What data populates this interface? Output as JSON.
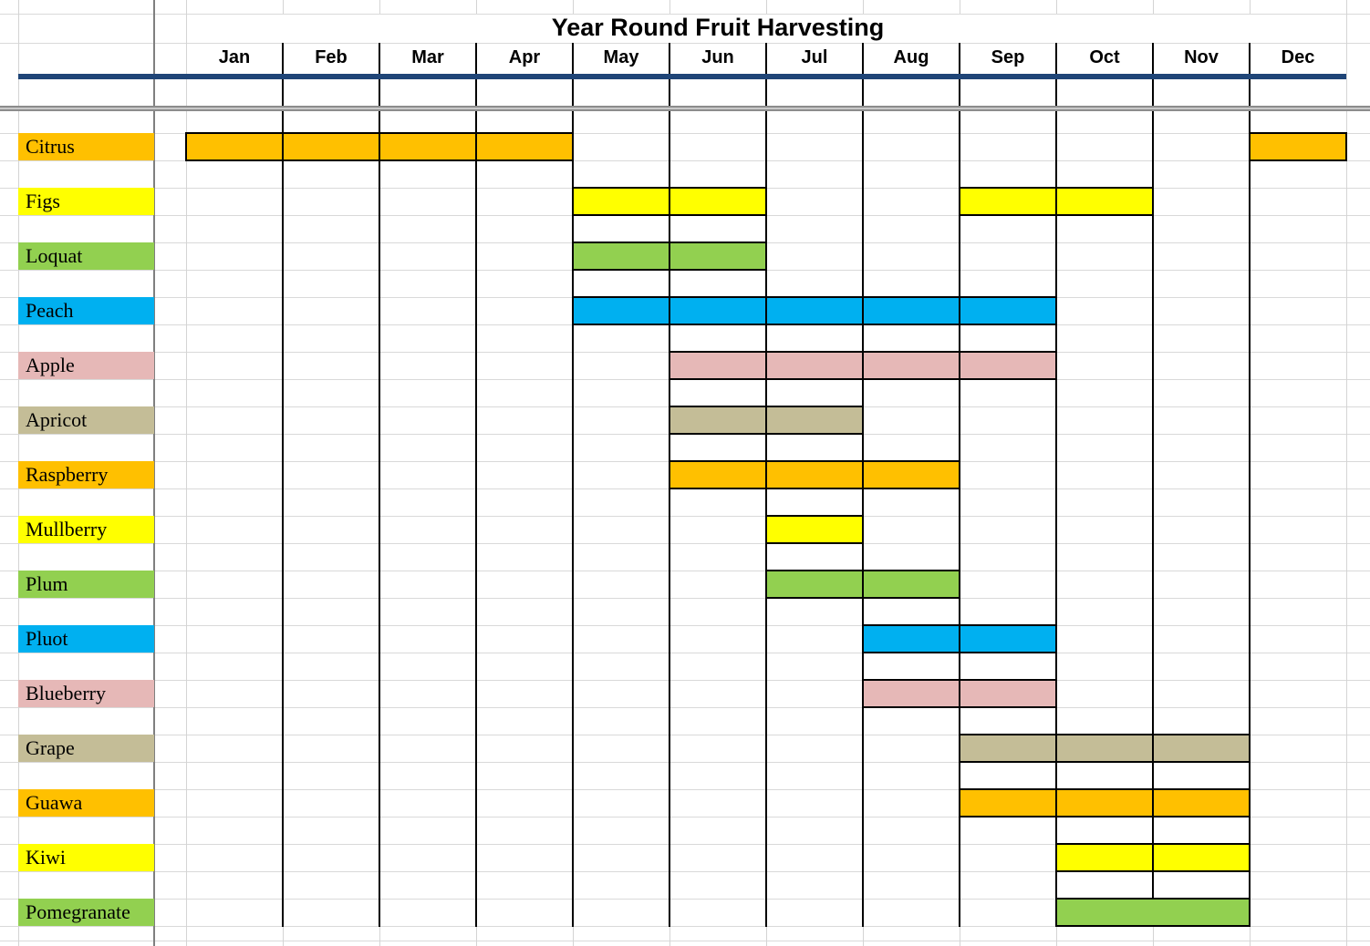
{
  "title": "Year Round Fruit Harvesting",
  "months": [
    "Jan",
    "Feb",
    "Mar",
    "Apr",
    "May",
    "Jun",
    "Jul",
    "Aug",
    "Sep",
    "Oct",
    "Nov",
    "Dec"
  ],
  "colors": {
    "header_rule_blue": "#1F4577",
    "orange": "#FFC000",
    "yellow": "#FFFF00",
    "green": "#92D050",
    "blue": "#00B0F0",
    "rose": "#E6B8B7",
    "tan": "#C4BD97"
  },
  "fruits": [
    {
      "name": "Citrus",
      "color": "#FFC000",
      "segments": [
        {
          "start": "Jan",
          "end": "Apr"
        },
        {
          "start": "Dec",
          "end": "Dec"
        }
      ]
    },
    {
      "name": "Figs",
      "color": "#FFFF00",
      "segments": [
        {
          "start": "May",
          "end": "Jun"
        },
        {
          "start": "Sep",
          "end": "Oct"
        }
      ]
    },
    {
      "name": "Loquat",
      "color": "#92D050",
      "segments": [
        {
          "start": "May",
          "end": "Jun"
        }
      ]
    },
    {
      "name": "Peach",
      "color": "#00B0F0",
      "segments": [
        {
          "start": "May",
          "end": "Sep"
        }
      ]
    },
    {
      "name": "Apple",
      "color": "#E6B8B7",
      "segments": [
        {
          "start": "Jun",
          "end": "Sep"
        }
      ]
    },
    {
      "name": "Apricot",
      "color": "#C4BD97",
      "segments": [
        {
          "start": "Jun",
          "end": "Jul"
        }
      ]
    },
    {
      "name": "Raspberry",
      "color": "#FFC000",
      "segments": [
        {
          "start": "Jun",
          "end": "Aug"
        }
      ]
    },
    {
      "name": "Mullberry",
      "color": "#FFFF00",
      "segments": [
        {
          "start": "Jul",
          "end": "Jul"
        }
      ]
    },
    {
      "name": "Plum",
      "color": "#92D050",
      "segments": [
        {
          "start": "Jul",
          "end": "Aug"
        }
      ]
    },
    {
      "name": "Pluot",
      "color": "#00B0F0",
      "segments": [
        {
          "start": "Aug",
          "end": "Sep"
        }
      ]
    },
    {
      "name": "Blueberry",
      "color": "#E6B8B7",
      "segments": [
        {
          "start": "Aug",
          "end": "Sep"
        }
      ]
    },
    {
      "name": "Grape",
      "color": "#C4BD97",
      "segments": [
        {
          "start": "Sep",
          "end": "Nov"
        }
      ]
    },
    {
      "name": "Guawa",
      "color": "#FFC000",
      "segments": [
        {
          "start": "Sep",
          "end": "Nov"
        }
      ]
    },
    {
      "name": "Kiwi",
      "color": "#FFFF00",
      "segments": [
        {
          "start": "Oct",
          "end": "Nov"
        }
      ]
    },
    {
      "name": "Pomegranate",
      "color": "#92D050",
      "segments": [
        {
          "start": "Oct",
          "end": "Nov",
          "merged": true
        }
      ]
    }
  ],
  "chart_data": {
    "type": "table",
    "subtype": "gantt-harvest-calendar",
    "title": "Year Round Fruit Harvesting",
    "columns": [
      "Jan",
      "Feb",
      "Mar",
      "Apr",
      "May",
      "Jun",
      "Jul",
      "Aug",
      "Sep",
      "Oct",
      "Nov",
      "Dec"
    ],
    "rows": [
      {
        "fruit": "Citrus",
        "color": "#FFC000",
        "harvest_months": [
          "Jan",
          "Feb",
          "Mar",
          "Apr",
          "Dec"
        ]
      },
      {
        "fruit": "Figs",
        "color": "#FFFF00",
        "harvest_months": [
          "May",
          "Jun",
          "Sep",
          "Oct"
        ]
      },
      {
        "fruit": "Loquat",
        "color": "#92D050",
        "harvest_months": [
          "May",
          "Jun"
        ]
      },
      {
        "fruit": "Peach",
        "color": "#00B0F0",
        "harvest_months": [
          "May",
          "Jun",
          "Jul",
          "Aug",
          "Sep"
        ]
      },
      {
        "fruit": "Apple",
        "color": "#E6B8B7",
        "harvest_months": [
          "Jun",
          "Jul",
          "Aug",
          "Sep"
        ]
      },
      {
        "fruit": "Apricot",
        "color": "#C4BD97",
        "harvest_months": [
          "Jun",
          "Jul"
        ]
      },
      {
        "fruit": "Raspberry",
        "color": "#FFC000",
        "harvest_months": [
          "Jun",
          "Jul",
          "Aug"
        ]
      },
      {
        "fruit": "Mullberry",
        "color": "#FFFF00",
        "harvest_months": [
          "Jul"
        ]
      },
      {
        "fruit": "Plum",
        "color": "#92D050",
        "harvest_months": [
          "Jul",
          "Aug"
        ]
      },
      {
        "fruit": "Pluot",
        "color": "#00B0F0",
        "harvest_months": [
          "Aug",
          "Sep"
        ]
      },
      {
        "fruit": "Blueberry",
        "color": "#E6B8B7",
        "harvest_months": [
          "Aug",
          "Sep"
        ]
      },
      {
        "fruit": "Grape",
        "color": "#C4BD97",
        "harvest_months": [
          "Sep",
          "Oct",
          "Nov"
        ]
      },
      {
        "fruit": "Guawa",
        "color": "#FFC000",
        "harvest_months": [
          "Sep",
          "Oct",
          "Nov"
        ]
      },
      {
        "fruit": "Kiwi",
        "color": "#FFFF00",
        "harvest_months": [
          "Oct",
          "Nov"
        ]
      },
      {
        "fruit": "Pomegranate",
        "color": "#92D050",
        "harvest_months": [
          "Oct",
          "Nov"
        ]
      }
    ]
  }
}
